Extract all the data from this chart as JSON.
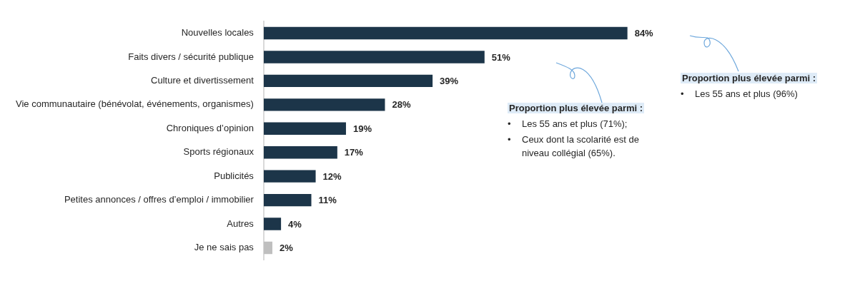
{
  "chart_data": {
    "type": "bar",
    "orientation": "horizontal",
    "categories": [
      "Nouvelles locales",
      "Faits divers / sécurité publique",
      "Culture et divertissement",
      "Vie communautaire (bénévolat, événements, organismes)",
      "Chroniques d’opinion",
      "Sports régionaux",
      "Publicités",
      "Petites annonces / offres d’emploi / immobilier",
      "Autres",
      "Je ne sais pas"
    ],
    "values": [
      84,
      51,
      39,
      28,
      19,
      17,
      12,
      11,
      4,
      2
    ],
    "colors": [
      "#1c3549",
      "#1c3549",
      "#1c3549",
      "#1c3549",
      "#1c3549",
      "#1c3549",
      "#1c3549",
      "#1c3549",
      "#1c3549",
      "#bfbfbf"
    ],
    "value_labels": [
      "84%",
      "51%",
      "39%",
      "28%",
      "19%",
      "17%",
      "12%",
      "11%",
      "4%",
      "2%"
    ],
    "tick_labels": "y",
    "annotations": [
      "Proportion plus élevée parmi :\n• Les 55 ans et plus (96%)",
      "Proportion plus élevée parmi :\n• Les 55 ans et plus (71%);\n• Ceux dont la scolarité est de niveau collégial (65%)."
    ]
  }
}
